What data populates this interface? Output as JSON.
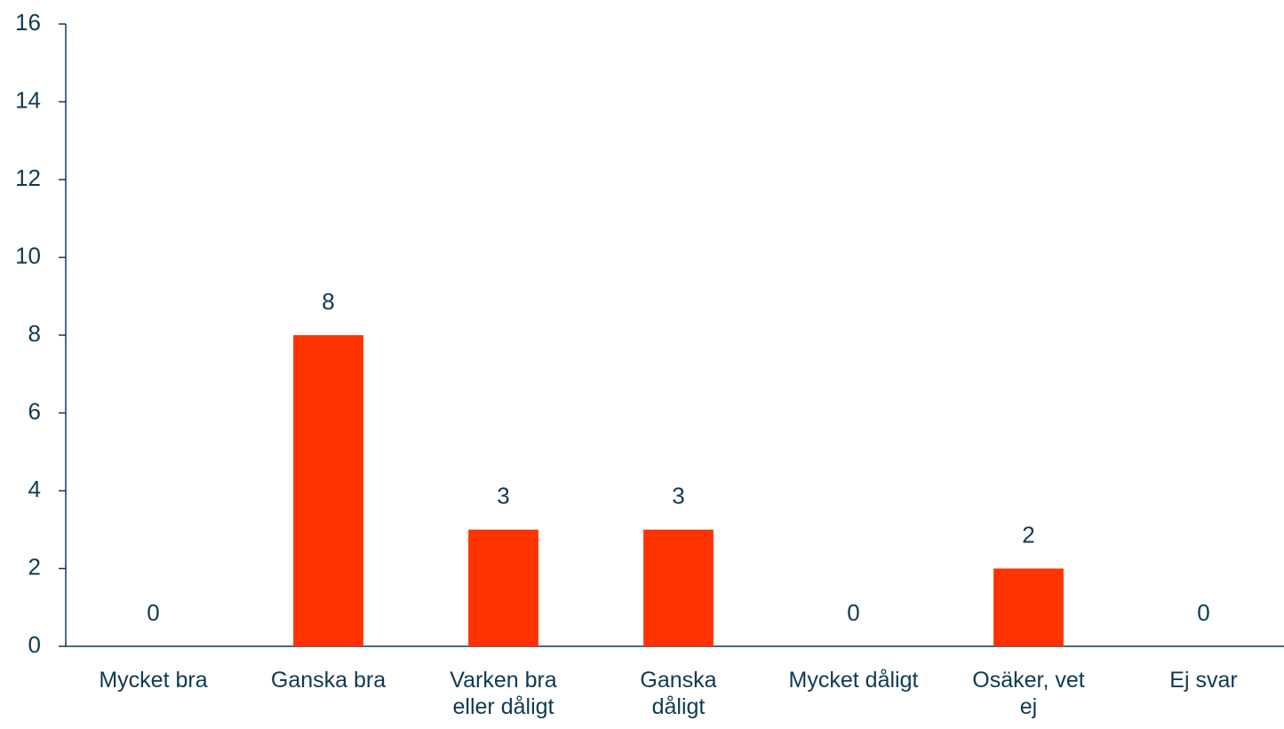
{
  "chart_data": {
    "type": "bar",
    "categories": [
      "Mycket bra",
      "Ganska bra",
      "Varken bra\neller dåligt",
      "Ganska\ndåligt",
      "Mycket dåligt",
      "Osäker, vet\nej",
      "Ej svar"
    ],
    "values": [
      0,
      8,
      3,
      3,
      0,
      2,
      0
    ],
    "color": "#ff3300",
    "ylim": [
      0,
      16
    ],
    "yticks": [
      0,
      2,
      4,
      6,
      8,
      10,
      12,
      14,
      16
    ],
    "grid": false
  }
}
